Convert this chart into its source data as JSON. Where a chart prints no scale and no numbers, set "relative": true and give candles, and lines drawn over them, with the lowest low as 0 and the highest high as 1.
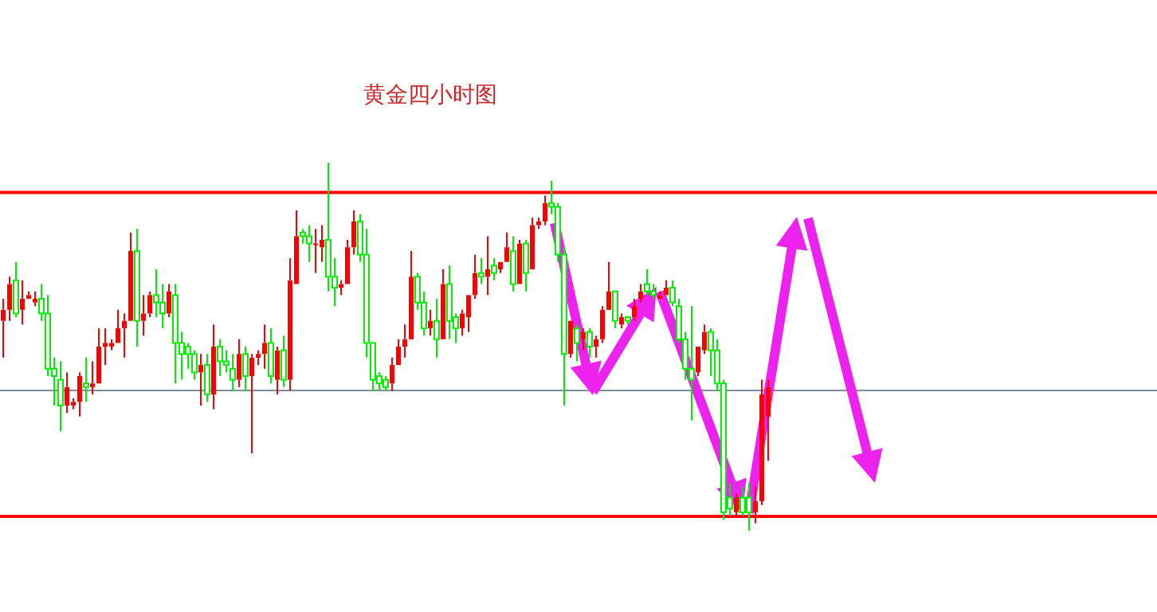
{
  "chart_data": {
    "type": "candlestick",
    "title": "黄金四小时图",
    "relative": true,
    "categories": [
      null,
      null,
      null,
      null,
      null,
      null,
      null,
      null,
      null,
      null,
      null,
      null,
      null,
      null,
      null,
      null,
      null,
      null,
      null,
      null,
      null,
      null,
      null,
      null,
      null,
      null,
      null,
      null,
      null,
      null,
      null,
      null,
      null,
      null,
      null,
      null,
      null,
      null,
      null,
      null,
      null,
      null,
      null,
      null,
      null,
      null,
      null,
      null,
      null,
      null,
      null,
      null,
      null,
      null,
      null,
      null,
      null,
      null,
      null,
      null,
      null,
      null,
      null,
      null,
      null,
      null,
      null,
      null,
      null,
      null,
      null,
      null,
      null,
      null,
      null,
      null,
      null,
      null,
      null,
      null,
      null,
      null,
      null,
      null,
      null,
      null,
      null,
      null,
      null,
      null,
      null,
      null,
      null,
      null,
      null,
      null,
      null,
      null,
      null,
      null,
      null,
      null,
      null,
      null,
      null,
      null,
      null,
      null,
      null,
      null,
      null,
      null,
      null,
      null,
      null,
      null,
      null,
      null,
      null,
      null,
      null
    ],
    "ohlc": [
      [
        0.57,
        0.63,
        0.47,
        0.6
      ],
      [
        0.6,
        0.69,
        0.57,
        0.67
      ],
      [
        0.68,
        0.73,
        0.58,
        0.59
      ],
      [
        0.6,
        0.68,
        0.56,
        0.63
      ],
      [
        0.63,
        0.65,
        0.63,
        0.64
      ],
      [
        0.62,
        0.65,
        0.61,
        0.63
      ],
      [
        0.63,
        0.67,
        0.57,
        0.59
      ],
      [
        0.59,
        0.64,
        0.42,
        0.44
      ],
      [
        0.44,
        0.47,
        0.34,
        0.42
      ],
      [
        0.41,
        0.46,
        0.27,
        0.34
      ],
      [
        0.34,
        0.43,
        0.32,
        0.39
      ],
      [
        0.34,
        0.36,
        0.33,
        0.35
      ],
      [
        0.35,
        0.43,
        0.31,
        0.42
      ],
      [
        0.4,
        0.47,
        0.35,
        0.39
      ],
      [
        0.39,
        0.46,
        0.37,
        0.4
      ],
      [
        0.4,
        0.55,
        0.4,
        0.5
      ],
      [
        0.5,
        0.55,
        0.45,
        0.51
      ],
      [
        0.5,
        0.52,
        0.49,
        0.51
      ],
      [
        0.51,
        0.6,
        0.51,
        0.55
      ],
      [
        0.55,
        0.59,
        0.47,
        0.57
      ],
      [
        0.57,
        0.81,
        0.57,
        0.76
      ],
      [
        0.76,
        0.82,
        0.5,
        0.57
      ],
      [
        0.57,
        0.64,
        0.53,
        0.59
      ],
      [
        0.59,
        0.65,
        0.58,
        0.64
      ],
      [
        0.64,
        0.71,
        0.58,
        0.62
      ],
      [
        0.62,
        0.67,
        0.55,
        0.59
      ],
      [
        0.59,
        0.67,
        0.58,
        0.65
      ],
      [
        0.64,
        0.67,
        0.4,
        0.51
      ],
      [
        0.51,
        0.54,
        0.41,
        0.48
      ],
      [
        0.5,
        0.51,
        0.44,
        0.48
      ],
      [
        0.48,
        0.49,
        0.41,
        0.43
      ],
      [
        0.43,
        0.48,
        0.34,
        0.45
      ],
      [
        0.45,
        0.48,
        0.35,
        0.37
      ],
      [
        0.37,
        0.56,
        0.33,
        0.5
      ],
      [
        0.5,
        0.52,
        0.42,
        0.46
      ],
      [
        0.46,
        0.49,
        0.43,
        0.45
      ],
      [
        0.44,
        0.48,
        0.38,
        0.41
      ],
      [
        0.41,
        0.52,
        0.39,
        0.48
      ],
      [
        0.48,
        0.5,
        0.38,
        0.42
      ],
      [
        0.42,
        0.48,
        0.21,
        0.47
      ],
      [
        0.47,
        0.49,
        0.45,
        0.48
      ],
      [
        0.48,
        0.56,
        0.44,
        0.51
      ],
      [
        0.51,
        0.55,
        0.4,
        0.42
      ],
      [
        0.41,
        0.5,
        0.37,
        0.49
      ],
      [
        0.49,
        0.53,
        0.39,
        0.41
      ],
      [
        0.41,
        0.74,
        0.38,
        0.68
      ],
      [
        0.67,
        0.87,
        0.67,
        0.8
      ],
      [
        0.81,
        0.82,
        0.78,
        0.8
      ],
      [
        0.8,
        0.83,
        0.73,
        0.78
      ],
      [
        0.78,
        0.82,
        0.7,
        0.78
      ],
      [
        0.77,
        0.83,
        0.73,
        0.79
      ],
      [
        0.79,
        1,
        0.65,
        0.69
      ],
      [
        0.69,
        0.74,
        0.61,
        0.66
      ],
      [
        0.66,
        0.68,
        0.64,
        0.67
      ],
      [
        0.67,
        0.79,
        0.67,
        0.77
      ],
      [
        0.77,
        0.87,
        0.75,
        0.84
      ],
      [
        0.84,
        0.86,
        0.73,
        0.75
      ],
      [
        0.75,
        0.82,
        0.47,
        0.51
      ],
      [
        0.51,
        0.51,
        0.38,
        0.41
      ],
      [
        0.42,
        0.43,
        0.38,
        0.4
      ],
      [
        0.41,
        0.42,
        0.38,
        0.39
      ],
      [
        0.4,
        0.47,
        0.38,
        0.45
      ],
      [
        0.45,
        0.52,
        0.45,
        0.5
      ],
      [
        0.5,
        0.56,
        0.47,
        0.52
      ],
      [
        0.52,
        0.76,
        0.52,
        0.69
      ],
      [
        0.69,
        0.7,
        0.6,
        0.62
      ],
      [
        0.62,
        0.65,
        0.53,
        0.55
      ],
      [
        0.55,
        0.6,
        0.53,
        0.57
      ],
      [
        0.57,
        0.63,
        0.47,
        0.52
      ],
      [
        0.52,
        0.71,
        0.52,
        0.67
      ],
      [
        0.67,
        0.72,
        0.52,
        0.57
      ],
      [
        0.58,
        0.59,
        0.51,
        0.55
      ],
      [
        0.55,
        0.6,
        0.53,
        0.59
      ],
      [
        0.58,
        0.64,
        0.54,
        0.64
      ],
      [
        0.64,
        0.75,
        0.63,
        0.7
      ],
      [
        0.7,
        0.74,
        0.67,
        0.69
      ],
      [
        0.69,
        0.8,
        0.64,
        0.71
      ],
      [
        0.72,
        0.74,
        0.68,
        0.7
      ],
      [
        0.71,
        0.73,
        0.7,
        0.73
      ],
      [
        0.73,
        0.81,
        0.73,
        0.77
      ],
      [
        0.76,
        0.8,
        0.65,
        0.67
      ],
      [
        0.67,
        0.79,
        0.67,
        0.78
      ],
      [
        0.78,
        0.79,
        0.65,
        0.7
      ],
      [
        0.71,
        0.85,
        0.71,
        0.83
      ],
      [
        0.83,
        0.85,
        0.82,
        0.84
      ],
      [
        0.84,
        0.91,
        0.83,
        0.89
      ],
      [
        0.89,
        0.95,
        0.86,
        0.88
      ],
      [
        0.88,
        0.89,
        0.73,
        0.75
      ],
      [
        0.75,
        0.77,
        0.34,
        0.48
      ],
      [
        0.48,
        0.57,
        0.47,
        0.57
      ],
      [
        0.55,
        0.56,
        0.46,
        0.51
      ],
      [
        0.52,
        0.55,
        0.49,
        0.54
      ],
      [
        0.54,
        0.55,
        0.47,
        0.5
      ],
      [
        0.5,
        0.53,
        0.47,
        0.52
      ],
      [
        0.52,
        0.61,
        0.51,
        0.6
      ],
      [
        0.6,
        0.73,
        0.6,
        0.65
      ],
      [
        0.65,
        0.65,
        0.55,
        0.57
      ],
      [
        0.56,
        0.59,
        0.55,
        0.58
      ],
      [
        0.58,
        0.58,
        0.56,
        0.57
      ],
      [
        0.58,
        0.63,
        0.57,
        0.61
      ],
      [
        0.63,
        0.67,
        0.62,
        0.65
      ],
      [
        0.67,
        0.71,
        0.64,
        0.65
      ],
      [
        0.65,
        0.67,
        0.63,
        0.64
      ],
      [
        0.63,
        0.65,
        0.63,
        0.64
      ],
      [
        0.64,
        0.68,
        0.64,
        0.66
      ],
      [
        0.66,
        0.68,
        0.61,
        0.62
      ],
      [
        0.61,
        0.63,
        0.51,
        0.52
      ],
      [
        0.52,
        0.54,
        0.41,
        0.44
      ],
      [
        0.44,
        0.61,
        0.3,
        0.41
      ],
      [
        0.43,
        0.5,
        0.42,
        0.5
      ],
      [
        0.49,
        0.56,
        0.48,
        0.54
      ],
      [
        0.54,
        0.55,
        0.42,
        0.49
      ],
      [
        0.49,
        0.52,
        0.38,
        0.4
      ],
      [
        0.4,
        0.41,
        0.03,
        0.05
      ],
      [
        0.09,
        0.13,
        0.04,
        0.06
      ],
      [
        0.05,
        0.1,
        0.04,
        0.09
      ],
      [
        0.09,
        0.12,
        0.04,
        0.05
      ],
      [
        0.09,
        0.13,
        0,
        0.05
      ],
      [
        0.05,
        0.12,
        0.02,
        0.08
      ],
      [
        0.08,
        0.41,
        0.07,
        0.37
      ],
      [
        0.31,
        0.41,
        0.19,
        0.39
      ]
    ],
    "ref_lines": [
      {
        "axis": "y",
        "value": 0.919,
        "color": "#ff0000"
      },
      {
        "axis": "y",
        "value": 0.381,
        "color": "#7f8c99"
      },
      {
        "axis": "y",
        "value": 0.039,
        "color": "#ff0000"
      }
    ]
  }
}
